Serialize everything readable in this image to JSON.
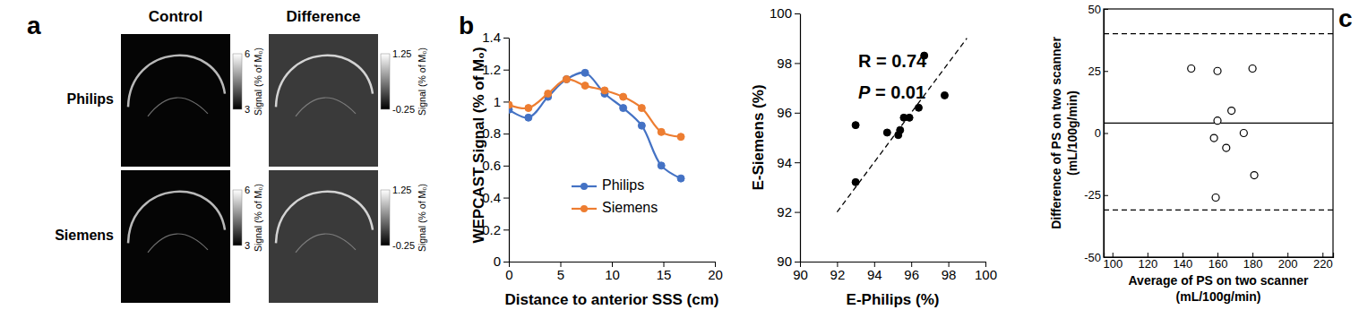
{
  "chart_data": [
    {
      "type": "image",
      "panel": "a",
      "columns": [
        "Control",
        "Difference"
      ],
      "rows": [
        "Philips",
        "Siemens"
      ],
      "colorbars": [
        {
          "label": "Signal (% of M₀)",
          "ylim": [
            3,
            6
          ],
          "yticks": [
            3,
            6
          ]
        },
        {
          "label": "Signal (% of M₀)",
          "ylim": [
            -0.25,
            1.25
          ],
          "yticks": [
            -0.25,
            1.25
          ]
        }
      ]
    },
    {
      "type": "line",
      "panel": "b",
      "x": [
        0,
        1.9,
        3.8,
        5.6,
        7.4,
        9.3,
        11.1,
        12.9,
        14.8,
        16.7
      ],
      "series": [
        {
          "name": "Philips",
          "color": "#4472c4",
          "marker": "circle",
          "values": [
            0.95,
            0.9,
            1.03,
            1.14,
            1.18,
            1.05,
            0.96,
            0.85,
            0.6,
            0.52
          ]
        },
        {
          "name": "Siemens",
          "color": "#ed7d31",
          "marker": "circle",
          "values": [
            0.98,
            0.96,
            1.05,
            1.14,
            1.1,
            1.07,
            1.03,
            0.96,
            0.81,
            0.78
          ]
        }
      ],
      "xlim": [
        0,
        20
      ],
      "xticks": [
        0,
        5,
        10,
        15,
        20
      ],
      "ylim": [
        0,
        1.4
      ],
      "yticks": [
        0,
        0.2,
        0.4,
        0.6,
        0.8,
        1,
        1.2,
        1.4
      ],
      "x_label": "Distance to anterior SSS (cm)",
      "y_label": "WEPCAST Signal (% of M₀)",
      "legend": "center",
      "grid": false
    },
    {
      "type": "scatter",
      "x": [
        93.0,
        93.0,
        94.7,
        95.3,
        95.4,
        95.6,
        95.9,
        96.4,
        96.7,
        97.8
      ],
      "values": [
        95.5,
        93.2,
        95.2,
        95.1,
        95.3,
        95.8,
        95.8,
        96.2,
        98.3,
        96.7
      ],
      "color": "#000000",
      "marker": "circle",
      "xlim": [
        90,
        100
      ],
      "xticks": [
        90,
        92,
        94,
        96,
        98,
        100
      ],
      "ylim": [
        90,
        100
      ],
      "yticks": [
        90,
        92,
        94,
        96,
        98,
        100
      ],
      "x_label": "E-Philips (%)",
      "y_label": "E-Siemens (%)",
      "annotations": [
        "R = 0.74",
        "P = 0.01"
      ],
      "reference_line": {
        "x": [
          92,
          99
        ],
        "y": [
          92,
          99
        ],
        "line_style": "dashed"
      },
      "grid": false
    },
    {
      "type": "scatter",
      "panel": "c",
      "x": [
        145,
        160,
        180,
        168,
        160,
        158,
        165,
        175,
        181,
        159
      ],
      "values": [
        26,
        25,
        26,
        9,
        5,
        -2,
        -6,
        0,
        -17,
        -26
      ],
      "color": "#000000",
      "marker": "open_circle",
      "xlim": [
        95,
        226
      ],
      "xticks": [
        100,
        120,
        140,
        160,
        180,
        200,
        220
      ],
      "ylim": [
        -50,
        50
      ],
      "yticks": [
        -50,
        -25,
        0,
        25,
        50
      ],
      "x_label": [
        "Average of PS on two scanner",
        "(mL/100g/min)"
      ],
      "y_label": [
        "Difference of PS on two scanner",
        "(mL/100g/min)"
      ],
      "hlines": [
        {
          "value": 4,
          "line_style": "solid"
        },
        {
          "value": 40,
          "line_style": "dashed"
        },
        {
          "value": -31,
          "line_style": "dashed"
        }
      ],
      "grid": false
    }
  ]
}
